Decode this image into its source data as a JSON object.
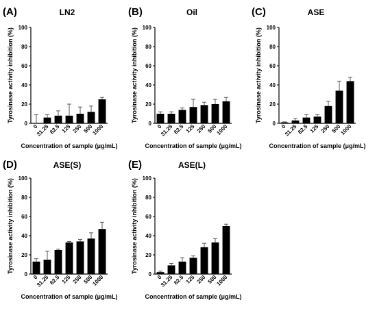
{
  "chart_data": [
    {
      "type": "bar",
      "panel_label": "(A)",
      "title": "LN2",
      "xlabel": "Concentration of sample (μg/mL)",
      "ylabel": "Tyrosinase activity inhibition (%)",
      "categories": [
        "0",
        "31.25",
        "62.5",
        "125",
        "250",
        "500",
        "1000"
      ],
      "values": [
        0,
        6,
        8,
        8,
        10,
        12,
        25
      ],
      "errors": [
        9,
        3,
        5,
        12,
        7,
        6,
        2
      ],
      "ylim": [
        0,
        100
      ],
      "yticks": [
        0,
        20,
        40,
        60,
        80,
        100
      ],
      "bar_color": "#000000"
    },
    {
      "type": "bar",
      "panel_label": "(B)",
      "title": "Oil",
      "xlabel": "Concentration of sample (μg/mL)",
      "ylabel": "Tyrosinase activity inhibition (%)",
      "categories": [
        "0",
        "31.25",
        "62.5",
        "125",
        "250",
        "500",
        "1000"
      ],
      "values": [
        10,
        10,
        14,
        17,
        19,
        20,
        23
      ],
      "errors": [
        2,
        2,
        2,
        8,
        3,
        5,
        4
      ],
      "ylim": [
        0,
        100
      ],
      "yticks": [
        0,
        20,
        40,
        60,
        80,
        100
      ],
      "bar_color": "#000000"
    },
    {
      "type": "bar",
      "panel_label": "(C)",
      "title": "ASE",
      "xlabel": "Concentration of sample (μg/mL)",
      "ylabel": "Tyrosinase activity inhibition (%)",
      "categories": [
        "0",
        "31.25",
        "62.5",
        "125",
        "250",
        "500",
        "1000"
      ],
      "values": [
        1,
        3,
        6,
        7,
        18,
        34,
        44
      ],
      "errors": [
        0.5,
        2,
        3,
        2,
        5,
        10,
        4
      ],
      "ylim": [
        0,
        100
      ],
      "yticks": [
        0,
        20,
        40,
        60,
        80,
        100
      ],
      "bar_color": "#000000"
    },
    {
      "type": "bar",
      "panel_label": "(D)",
      "title": "ASE(S)",
      "xlabel": "Concentration of sample (μg/mL)",
      "ylabel": "Tyrosinase activity inhibition (%)",
      "categories": [
        "0",
        "31.25",
        "62.5",
        "125",
        "250",
        "500",
        "1000"
      ],
      "values": [
        13,
        15,
        25,
        33,
        34,
        37,
        47
      ],
      "errors": [
        3,
        9,
        1,
        1,
        2,
        6,
        7
      ],
      "ylim": [
        0,
        100
      ],
      "yticks": [
        0,
        20,
        40,
        60,
        80,
        100
      ],
      "bar_color": "#000000"
    },
    {
      "type": "bar",
      "panel_label": "(E)",
      "title": "ASE(L)",
      "xlabel": "Concentration of sample (μg/mL)",
      "ylabel": "Tyrosinase activity inhibition (%)",
      "categories": [
        "0",
        "31.25",
        "62.5",
        "125",
        "250",
        "500",
        "1000"
      ],
      "values": [
        2,
        9,
        13,
        17,
        28,
        33,
        50
      ],
      "errors": [
        1,
        2,
        4,
        2,
        4,
        4,
        2
      ],
      "ylim": [
        0,
        100
      ],
      "yticks": [
        0,
        20,
        40,
        60,
        80,
        100
      ],
      "bar_color": "#000000"
    }
  ]
}
